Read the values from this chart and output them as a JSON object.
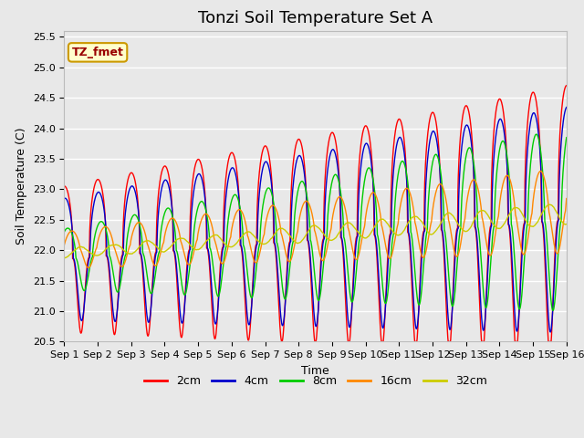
{
  "title": "Tonzi Soil Temperature Set A",
  "xlabel": "Time",
  "ylabel": "Soil Temperature (C)",
  "ylim": [
    20.5,
    25.6
  ],
  "xlim": [
    0,
    15
  ],
  "xtick_labels": [
    "Sep 1",
    "Sep 2",
    "Sep 3",
    "Sep 4",
    "Sep 5",
    "Sep 6",
    "Sep 7",
    "Sep 8",
    "Sep 9",
    "Sep 10",
    "Sep 11",
    "Sep 12",
    "Sep 13",
    "Sep 14",
    "Sep 15",
    "Sep 16"
  ],
  "yticks": [
    20.5,
    21.0,
    21.5,
    22.0,
    22.5,
    23.0,
    23.5,
    24.0,
    24.5,
    25.0,
    25.5
  ],
  "ytick_labels": [
    "20.5",
    "21.0",
    "21.5",
    "22.0",
    "22.5",
    "23.0",
    "23.5",
    "24.0",
    "24.5",
    "25.0",
    "25.5"
  ],
  "series_colors": [
    "#ff0000",
    "#0000cc",
    "#00cc00",
    "#ff8800",
    "#cccc00"
  ],
  "series_labels": [
    "2cm",
    "4cm",
    "8cm",
    "16cm",
    "32cm"
  ],
  "legend_label": "TZ_fmet",
  "legend_bg": "#ffffcc",
  "legend_border": "#cc9900",
  "bg_color": "#e8e8e8",
  "plot_bg": "#e8e8e8",
  "grid_color": "#ffffff",
  "title_fontsize": 13,
  "axis_label_fontsize": 9,
  "tick_fontsize": 8,
  "legend_fontsize": 9
}
